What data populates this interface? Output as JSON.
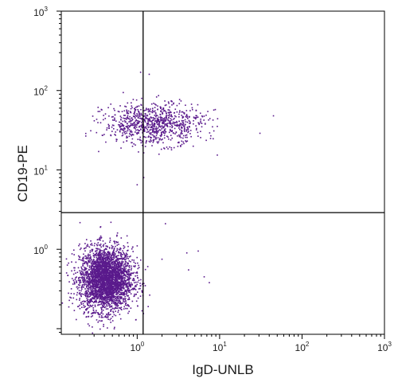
{
  "chart_data": {
    "type": "scatter",
    "title": "",
    "xlabel": "IgD-UNLB",
    "ylabel": "CD19-PE",
    "xscale": "log",
    "yscale": "log",
    "xlim": [
      0.12,
      1000
    ],
    "ylim": [
      0.085,
      1000
    ],
    "x_ticks": [
      {
        "base": "10",
        "exp": "0",
        "value": 1
      },
      {
        "base": "10",
        "exp": "1",
        "value": 10
      },
      {
        "base": "10",
        "exp": "2",
        "value": 100
      },
      {
        "base": "10",
        "exp": "3",
        "value": 1000
      }
    ],
    "y_ticks": [
      {
        "base": "10",
        "exp": "0",
        "value": 1
      },
      {
        "base": "10",
        "exp": "1",
        "value": 10
      },
      {
        "base": "10",
        "exp": "2",
        "value": 100
      },
      {
        "base": "10",
        "exp": "3",
        "value": 1000
      }
    ],
    "quadrant_gates": {
      "x": 1.18,
      "y": 2.9
    },
    "point_color": "#5a1a8c",
    "series": [
      {
        "population": "CD19-negative / IgD-negative (lower-left)",
        "count_shown": "dense cluster",
        "sample_points": [
          [
            0.3,
            0.4
          ],
          [
            0.45,
            0.5
          ],
          [
            0.55,
            0.35
          ],
          [
            0.4,
            0.25
          ],
          [
            0.6,
            0.6
          ],
          [
            0.35,
            0.7
          ],
          [
            0.5,
            0.2
          ],
          [
            0.8,
            0.45
          ],
          [
            0.25,
            0.55
          ],
          [
            0.7,
            0.3
          ]
        ]
      },
      {
        "population": "CD19-positive (upper band)",
        "count_shown": "elongated cloud",
        "sample_points": [
          [
            0.5,
            40
          ],
          [
            1.0,
            35
          ],
          [
            1.5,
            45
          ],
          [
            2.0,
            38
          ],
          [
            3.0,
            42
          ],
          [
            4.0,
            40
          ],
          [
            6.0,
            48
          ],
          [
            0.8,
            55
          ],
          [
            2.5,
            30
          ],
          [
            7.0,
            35
          ],
          [
            45,
            48
          ]
        ]
      },
      {
        "population": "sparse outliers (lower-right)",
        "sample_points": [
          [
            2.2,
            2.1
          ],
          [
            4,
            0.9
          ],
          [
            5.5,
            0.95
          ],
          [
            2,
            0.75
          ],
          [
            4.2,
            0.55
          ],
          [
            6.5,
            0.45
          ],
          [
            7.5,
            0.38
          ]
        ]
      }
    ],
    "grid": false,
    "legend": "none"
  }
}
